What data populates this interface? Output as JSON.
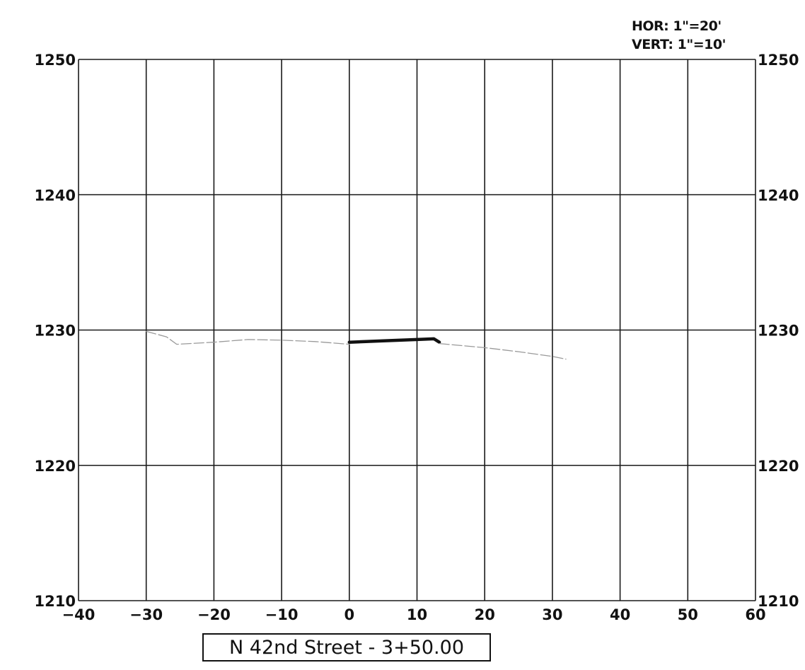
{
  "chart_data": {
    "type": "line",
    "title": "N 42nd Street - 3+50.00",
    "scale_notes": [
      "HOR: 1\"=20'",
      "VERT: 1\"=10'"
    ],
    "xlabel": "",
    "ylabel": "",
    "xlim": [
      -40,
      60
    ],
    "ylim": [
      1210,
      1250
    ],
    "x_ticks": [
      -40,
      -30,
      -20,
      -10,
      0,
      10,
      20,
      30,
      40,
      50,
      60
    ],
    "y_ticks": [
      1210,
      1220,
      1230,
      1240,
      1250
    ],
    "y_ticks_right": [
      1210,
      1220,
      1230,
      1240,
      1250
    ],
    "grid": true,
    "series": [
      {
        "style": "thin-gray",
        "color": "#9a9a9a",
        "x": [
          -30,
          -27,
          -25.5,
          -20,
          -15,
          -10,
          -5,
          0
        ],
        "y": [
          1229.9,
          1229.5,
          1228.95,
          1229.1,
          1229.3,
          1229.25,
          1229.15,
          1228.95
        ]
      },
      {
        "style": "thick-black",
        "color": "#111111",
        "x": [
          0,
          5,
          10,
          12.5,
          13.3
        ],
        "y": [
          1229.1,
          1229.2,
          1229.3,
          1229.35,
          1229.1
        ]
      },
      {
        "style": "thin-gray",
        "color": "#9a9a9a",
        "x": [
          13.3,
          20,
          25,
          30,
          32
        ],
        "y": [
          1229.0,
          1228.7,
          1228.4,
          1228.05,
          1227.85
        ]
      }
    ]
  }
}
